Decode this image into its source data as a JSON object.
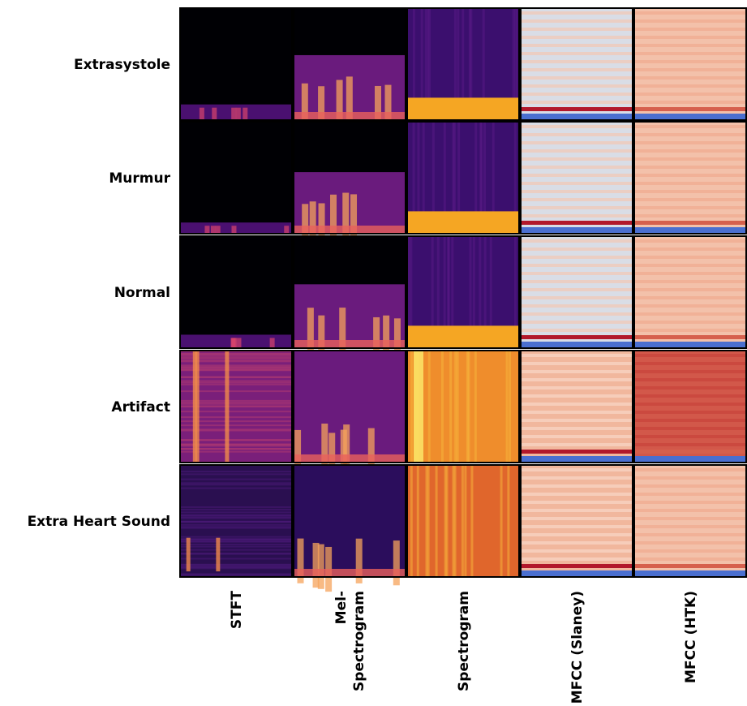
{
  "rows": [
    "Extrasystole",
    "Murmur",
    "Normal",
    "Artifact",
    "Extra Heart Sound"
  ],
  "columns": [
    [
      "STFT"
    ],
    [
      "Mel-",
      "Spectrogram"
    ],
    [
      "Spectrogram"
    ],
    [
      "MFCC (Slaney)"
    ],
    [
      "MFCC (HTK)"
    ]
  ]
}
